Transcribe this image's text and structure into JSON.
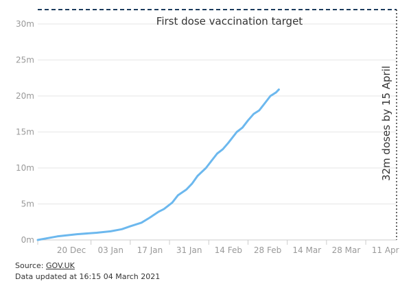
{
  "chart_data": {
    "type": "line",
    "title": "",
    "xlabel": "",
    "ylabel": "",
    "x_tick_labels": [
      "20 Dec",
      "03 Jan",
      "17 Jan",
      "31 Jan",
      "14 Feb",
      "28 Feb",
      "14 Mar",
      "28 Mar",
      "11 Apr"
    ],
    "y_tick_labels": [
      "0m",
      "5m",
      "10m",
      "15m",
      "20m",
      "25m",
      "30m"
    ],
    "ylim": [
      0,
      32
    ],
    "xlim": [
      "2020-12-08",
      "2021-04-15"
    ],
    "grid": true,
    "series": [
      {
        "color": "#6cb8ee",
        "points": [
          [
            "2020-12-08",
            0.0
          ],
          [
            "2020-12-15",
            0.5
          ],
          [
            "2020-12-22",
            0.8
          ],
          [
            "2020-12-29",
            1.0
          ],
          [
            "2021-01-03",
            1.2
          ],
          [
            "2021-01-07",
            1.5
          ],
          [
            "2021-01-10",
            1.9
          ],
          [
            "2021-01-14",
            2.4
          ],
          [
            "2021-01-17",
            3.1
          ],
          [
            "2021-01-20",
            3.9
          ],
          [
            "2021-01-22",
            4.3
          ],
          [
            "2021-01-25",
            5.2
          ],
          [
            "2021-01-27",
            6.2
          ],
          [
            "2021-01-30",
            7.0
          ],
          [
            "2021-02-01",
            7.8
          ],
          [
            "2021-02-03",
            8.9
          ],
          [
            "2021-02-06",
            10.0
          ],
          [
            "2021-02-08",
            11.0
          ],
          [
            "2021-02-10",
            12.0
          ],
          [
            "2021-02-12",
            12.6
          ],
          [
            "2021-02-14",
            13.5
          ],
          [
            "2021-02-17",
            15.0
          ],
          [
            "2021-02-19",
            15.6
          ],
          [
            "2021-02-21",
            16.6
          ],
          [
            "2021-02-23",
            17.5
          ],
          [
            "2021-02-25",
            18.0
          ],
          [
            "2021-02-27",
            19.0
          ],
          [
            "2021-03-01",
            20.0
          ],
          [
            "2021-03-03",
            20.5
          ],
          [
            "2021-03-04",
            20.9
          ]
        ]
      }
    ],
    "target": {
      "value": 32,
      "label": "First dose vaccination target",
      "deadline_label": "32m doses by 15 April",
      "deadline_date": "2021-04-15",
      "color": "#1a3a5c"
    }
  },
  "footer": {
    "source_prefix": "Source: ",
    "source_link": "GOV.UK",
    "updated": "Data updated at 16:15 04 March 2021"
  }
}
